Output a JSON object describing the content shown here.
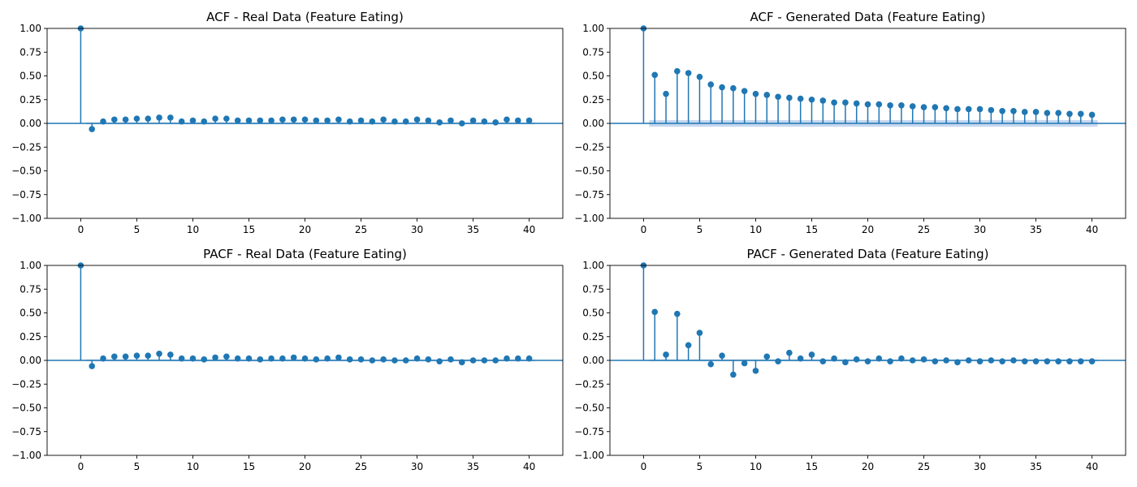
{
  "figure": {
    "colors": {
      "stem": "#1f77b4",
      "confidence_band": "#aec7e8"
    }
  },
  "chart_data": [
    {
      "type": "stem",
      "title": "ACF - Real Data (Feature Eating)",
      "xlim": [
        -3,
        43
      ],
      "ylim": [
        -1,
        1
      ],
      "xticks": [
        0,
        5,
        10,
        15,
        20,
        25,
        30,
        35,
        40
      ],
      "yticks": [
        1.0,
        0.75,
        0.5,
        0.25,
        0.0,
        -0.25,
        -0.5,
        -0.75,
        -1.0
      ],
      "ytick_labels": [
        "1.00",
        "0.75",
        "0.50",
        "0.25",
        "0.00",
        "−0.25",
        "−0.50",
        "−0.75",
        "−1.00"
      ],
      "confidence_band": 0.01,
      "lags": [
        0,
        1,
        2,
        3,
        4,
        5,
        6,
        7,
        8,
        9,
        10,
        11,
        12,
        13,
        14,
        15,
        16,
        17,
        18,
        19,
        20,
        21,
        22,
        23,
        24,
        25,
        26,
        27,
        28,
        29,
        30,
        31,
        32,
        33,
        34,
        35,
        36,
        37,
        38,
        39,
        40
      ],
      "values": [
        1.0,
        -0.06,
        0.02,
        0.04,
        0.04,
        0.05,
        0.05,
        0.06,
        0.06,
        0.02,
        0.03,
        0.02,
        0.05,
        0.05,
        0.03,
        0.03,
        0.03,
        0.03,
        0.04,
        0.04,
        0.04,
        0.03,
        0.03,
        0.04,
        0.02,
        0.03,
        0.02,
        0.04,
        0.02,
        0.02,
        0.04,
        0.03,
        0.01,
        0.03,
        0.0,
        0.03,
        0.02,
        0.01,
        0.04,
        0.03,
        0.03
      ]
    },
    {
      "type": "stem",
      "title": "ACF - Generated Data (Feature Eating)",
      "xlim": [
        -3,
        43
      ],
      "ylim": [
        -1,
        1
      ],
      "xticks": [
        0,
        5,
        10,
        15,
        20,
        25,
        30,
        35,
        40
      ],
      "yticks": [
        1.0,
        0.75,
        0.5,
        0.25,
        0.0,
        -0.25,
        -0.5,
        -0.75,
        -1.0
      ],
      "ytick_labels": [
        "1.00",
        "0.75",
        "0.50",
        "0.25",
        "0.00",
        "−0.25",
        "−0.50",
        "−0.75",
        "−1.00"
      ],
      "confidence_band": 0.035,
      "lags": [
        0,
        1,
        2,
        3,
        4,
        5,
        6,
        7,
        8,
        9,
        10,
        11,
        12,
        13,
        14,
        15,
        16,
        17,
        18,
        19,
        20,
        21,
        22,
        23,
        24,
        25,
        26,
        27,
        28,
        29,
        30,
        31,
        32,
        33,
        34,
        35,
        36,
        37,
        38,
        39,
        40
      ],
      "values": [
        1.0,
        0.51,
        0.31,
        0.55,
        0.53,
        0.49,
        0.41,
        0.38,
        0.37,
        0.34,
        0.31,
        0.3,
        0.28,
        0.27,
        0.26,
        0.25,
        0.24,
        0.22,
        0.22,
        0.21,
        0.2,
        0.2,
        0.19,
        0.19,
        0.18,
        0.17,
        0.17,
        0.16,
        0.15,
        0.15,
        0.15,
        0.14,
        0.13,
        0.13,
        0.12,
        0.12,
        0.11,
        0.11,
        0.1,
        0.1,
        0.09
      ]
    },
    {
      "type": "stem",
      "title": "PACF - Real Data (Feature Eating)",
      "xlim": [
        -3,
        43
      ],
      "ylim": [
        -1,
        1
      ],
      "xticks": [
        0,
        5,
        10,
        15,
        20,
        25,
        30,
        35,
        40
      ],
      "yticks": [
        1.0,
        0.75,
        0.5,
        0.25,
        0.0,
        -0.25,
        -0.5,
        -0.75,
        -1.0
      ],
      "ytick_labels": [
        "1.00",
        "0.75",
        "0.50",
        "0.25",
        "0.00",
        "−0.25",
        "−0.50",
        "−0.75",
        "−1.00"
      ],
      "confidence_band": 0.01,
      "lags": [
        0,
        1,
        2,
        3,
        4,
        5,
        6,
        7,
        8,
        9,
        10,
        11,
        12,
        13,
        14,
        15,
        16,
        17,
        18,
        19,
        20,
        21,
        22,
        23,
        24,
        25,
        26,
        27,
        28,
        29,
        30,
        31,
        32,
        33,
        34,
        35,
        36,
        37,
        38,
        39,
        40
      ],
      "values": [
        1.0,
        -0.06,
        0.02,
        0.04,
        0.04,
        0.05,
        0.05,
        0.07,
        0.06,
        0.02,
        0.02,
        0.01,
        0.03,
        0.04,
        0.02,
        0.02,
        0.01,
        0.02,
        0.02,
        0.03,
        0.02,
        0.01,
        0.02,
        0.03,
        0.01,
        0.01,
        0.0,
        0.01,
        0.0,
        0.0,
        0.02,
        0.01,
        -0.01,
        0.01,
        -0.02,
        0.0,
        0.0,
        0.0,
        0.02,
        0.02,
        0.02
      ]
    },
    {
      "type": "stem",
      "title": "PACF - Generated Data (Feature Eating)",
      "xlim": [
        -3,
        43
      ],
      "ylim": [
        -1,
        1
      ],
      "xticks": [
        0,
        5,
        10,
        15,
        20,
        25,
        30,
        35,
        40
      ],
      "yticks": [
        1.0,
        0.75,
        0.5,
        0.25,
        0.0,
        -0.25,
        -0.5,
        -0.75,
        -1.0
      ],
      "ytick_labels": [
        "1.00",
        "0.75",
        "0.50",
        "0.25",
        "0.00",
        "−0.25",
        "−0.50",
        "−0.75",
        "−1.00"
      ],
      "confidence_band": 0.01,
      "lags": [
        0,
        1,
        2,
        3,
        4,
        5,
        6,
        7,
        8,
        9,
        10,
        11,
        12,
        13,
        14,
        15,
        16,
        17,
        18,
        19,
        20,
        21,
        22,
        23,
        24,
        25,
        26,
        27,
        28,
        29,
        30,
        31,
        32,
        33,
        34,
        35,
        36,
        37,
        38,
        39,
        40
      ],
      "values": [
        1.0,
        0.51,
        0.06,
        0.49,
        0.16,
        0.29,
        -0.04,
        0.05,
        -0.15,
        -0.03,
        -0.11,
        0.04,
        -0.01,
        0.08,
        0.02,
        0.06,
        -0.01,
        0.02,
        -0.02,
        0.01,
        -0.01,
        0.02,
        -0.01,
        0.02,
        0.0,
        0.01,
        -0.01,
        0.0,
        -0.02,
        0.0,
        -0.01,
        0.0,
        -0.01,
        0.0,
        -0.01,
        -0.01,
        -0.01,
        -0.01,
        -0.01,
        -0.01,
        -0.01
      ]
    }
  ]
}
